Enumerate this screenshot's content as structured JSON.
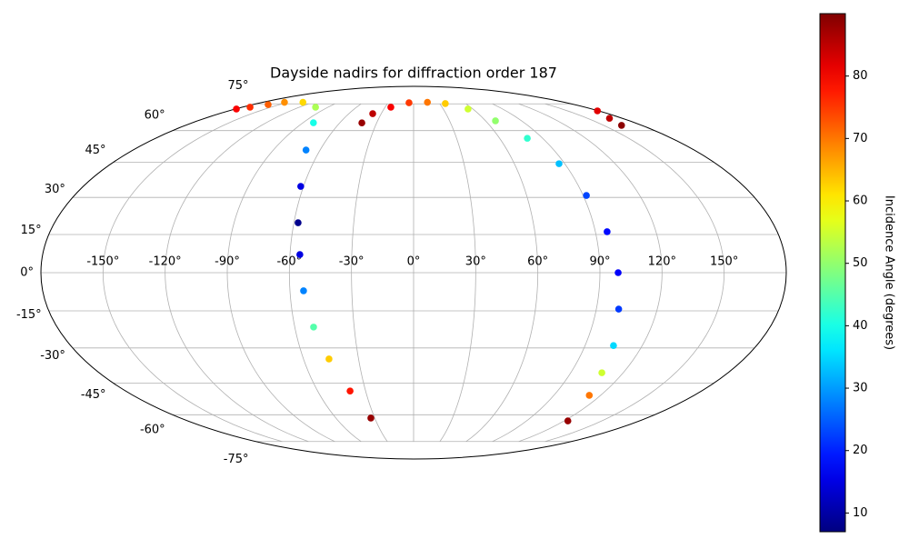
{
  "chart_data": {
    "type": "scatter",
    "projection": "mollweide",
    "title": "Dayside nadirs for diffraction order 187",
    "x": [
      -42,
      -37.9,
      -23.9,
      -5.4,
      16.5,
      36.5,
      55,
      68.2,
      79.3,
      86.6,
      91.7,
      95.8,
      98.8,
      101,
      104.9,
      107.8,
      112.7,
      123,
      -33,
      -39.7,
      -46.1,
      -50.5,
      -53.4,
      -55.2,
      -57.9,
      -61.5,
      -69,
      -81.5,
      -103,
      -132,
      -154,
      -162.6,
      -171.8,
      -179,
      179,
      169,
      164
    ],
    "y": [
      64,
      69.1,
      72.9,
      75.7,
      76,
      75.2,
      71.8,
      65.1,
      56.2,
      44.4,
      30.8,
      16.1,
      0,
      -14.3,
      -29,
      -40.5,
      -50.6,
      -63.2,
      -61.7,
      -48.6,
      -34.6,
      -21.5,
      -7.1,
      7.1,
      19.7,
      34.6,
      50.6,
      64.1,
      72.9,
      76,
      76,
      74.5,
      72.9,
      71.8,
      70.7,
      66.5,
      62.7
    ],
    "color_values": [
      88,
      85,
      80,
      75,
      70,
      63,
      55,
      50,
      42,
      33,
      23,
      18,
      17,
      22,
      35,
      55,
      70,
      88,
      88,
      78,
      63,
      45,
      28,
      15,
      8,
      15,
      28,
      40,
      52,
      62,
      68,
      72,
      76,
      80,
      82,
      85,
      89
    ],
    "colormap": "jet",
    "clim": [
      7,
      90
    ],
    "xlim": [
      -180,
      180
    ],
    "ylim": [
      -90,
      90
    ],
    "xticks": [
      {
        "value": -150,
        "label": "-150°"
      },
      {
        "value": -120,
        "label": "-120°"
      },
      {
        "value": -90,
        "label": "-90°"
      },
      {
        "value": -60,
        "label": "-60°"
      },
      {
        "value": -30,
        "label": "-30°"
      },
      {
        "value": 0,
        "label": "0°"
      },
      {
        "value": 30,
        "label": "30°"
      },
      {
        "value": 60,
        "label": "60°"
      },
      {
        "value": 90,
        "label": "90°"
      },
      {
        "value": 120,
        "label": "120°"
      },
      {
        "value": 150,
        "label": "150°"
      }
    ],
    "yticks": [
      {
        "value": -75,
        "label": "-75°"
      },
      {
        "value": -60,
        "label": "-60°"
      },
      {
        "value": -45,
        "label": "-45°"
      },
      {
        "value": -30,
        "label": "-30°"
      },
      {
        "value": -15,
        "label": "-15°"
      },
      {
        "value": 0,
        "label": "0°"
      },
      {
        "value": 15,
        "label": "15°"
      },
      {
        "value": 30,
        "label": "30°"
      },
      {
        "value": 45,
        "label": "45°"
      },
      {
        "value": 60,
        "label": "60°"
      },
      {
        "value": 75,
        "label": "75°"
      }
    ],
    "grid": true,
    "colorbar": {
      "label": "Incidence Angle (degrees)",
      "ticks": [
        10,
        20,
        30,
        40,
        50,
        60,
        70,
        80
      ]
    }
  }
}
